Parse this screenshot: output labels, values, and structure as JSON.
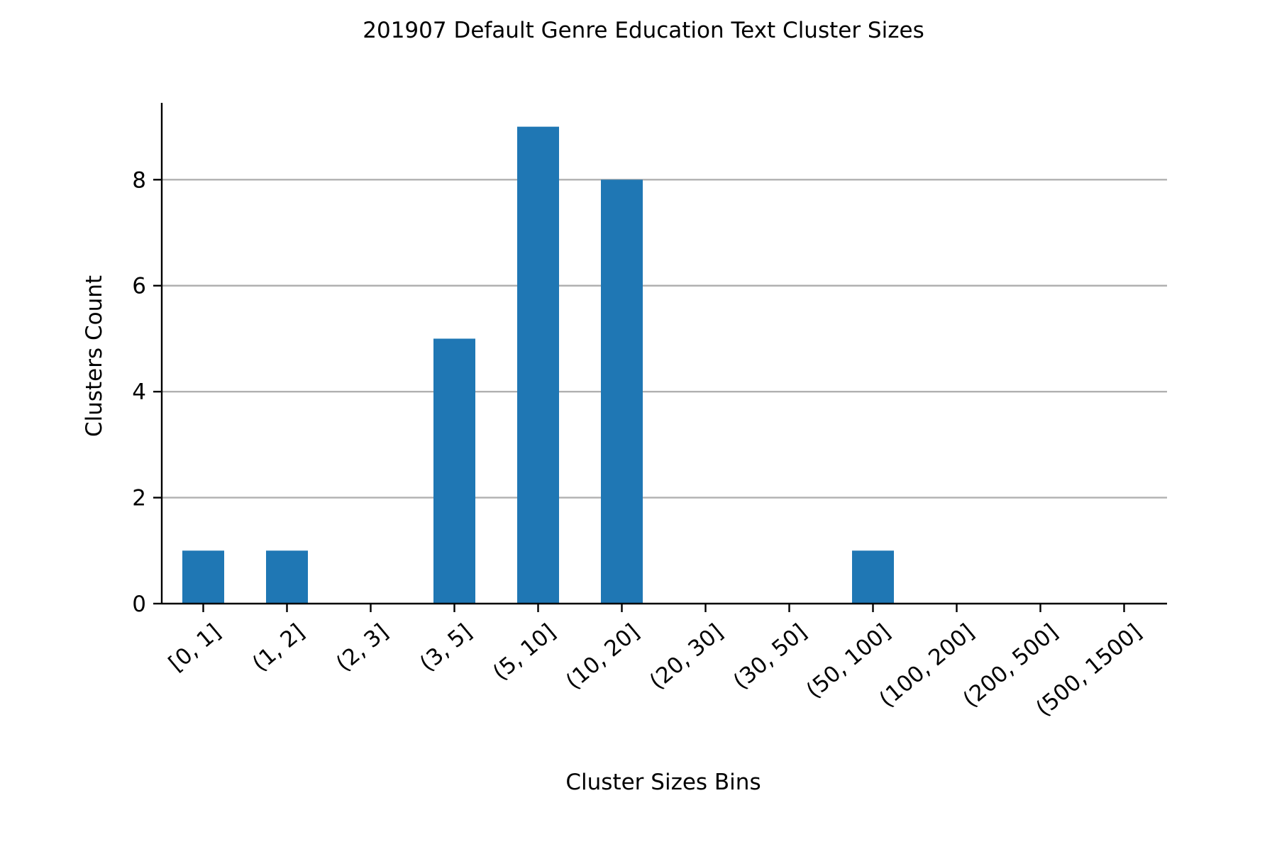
{
  "chart_data": {
    "type": "bar",
    "title": "201907 Default Genre Education Text Cluster Sizes",
    "xlabel": "Cluster Sizes Bins",
    "ylabel": "Clusters Count",
    "categories": [
      "[0, 1]",
      "(1, 2]",
      "(2, 3]",
      "(3, 5]",
      "(5, 10]",
      "(10, 20]",
      "(20, 30]",
      "(30, 50]",
      "(50, 100]",
      "(100, 200]",
      "(200, 500]",
      "(500, 1500]"
    ],
    "values": [
      1,
      1,
      0,
      5,
      9,
      8,
      0,
      0,
      1,
      0,
      0,
      0
    ],
    "ylim": [
      0,
      9.45
    ],
    "yticks": [
      0,
      2,
      4,
      6,
      8
    ],
    "grid": "horizontal",
    "legend": "none",
    "colors": {
      "bar": "#1f77b4",
      "grid": "#b0b0b0",
      "axis": "#000000"
    }
  }
}
